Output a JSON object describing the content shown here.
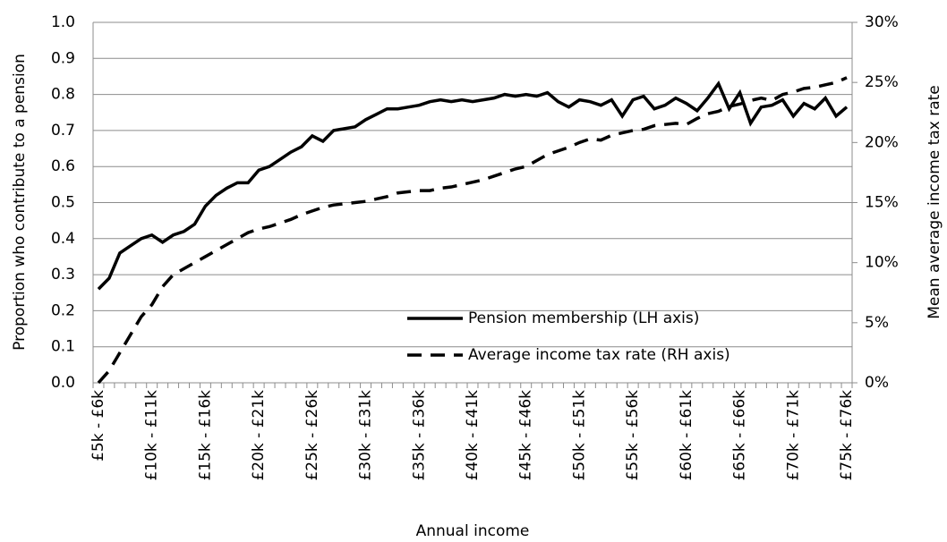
{
  "chart_data": {
    "type": "line",
    "x_label": "Annual income",
    "y_label": "Proportion who contribute to a pension",
    "y2_label": "Mean average income tax rate",
    "categories": [
      "£5k - £6k",
      null,
      null,
      null,
      null,
      "£10k - £11k",
      null,
      null,
      null,
      null,
      "£15k - £16k",
      null,
      null,
      null,
      null,
      "£20k - £21k",
      null,
      null,
      null,
      null,
      "£25k - £26k",
      null,
      null,
      null,
      null,
      "£30k - £31k",
      null,
      null,
      null,
      null,
      "£35k - £36k",
      null,
      null,
      null,
      null,
      "£40k - £41k",
      null,
      null,
      null,
      null,
      "£45k - £46k",
      null,
      null,
      null,
      null,
      "£50k - £51k",
      null,
      null,
      null,
      null,
      "£55k - £56k",
      null,
      null,
      null,
      null,
      "£60k - £61k",
      null,
      null,
      null,
      null,
      "£65k - £66k",
      null,
      null,
      null,
      null,
      "£70k - £71k",
      null,
      null,
      null,
      null,
      "£75k - £76k"
    ],
    "series": [
      {
        "name": "Pension membership (LH axis)",
        "color": "#000000",
        "dash": "solid",
        "axis": "y",
        "values": [
          0.26,
          0.29,
          0.36,
          0.38,
          0.4,
          0.41,
          0.39,
          0.41,
          0.42,
          0.44,
          0.49,
          0.52,
          0.54,
          0.555,
          0.555,
          0.59,
          0.6,
          0.62,
          0.64,
          0.655,
          0.685,
          0.67,
          0.7,
          0.705,
          0.71,
          0.73,
          0.745,
          0.76,
          0.76,
          0.765,
          0.77,
          0.78,
          0.785,
          0.78,
          0.785,
          0.78,
          0.785,
          0.79,
          0.8,
          0.795,
          0.8,
          0.795,
          0.805,
          0.78,
          0.765,
          0.785,
          0.78,
          0.77,
          0.785,
          0.74,
          0.785,
          0.795,
          0.76,
          0.77,
          0.79,
          0.775,
          0.755,
          0.79,
          0.83,
          0.76,
          0.805,
          0.72,
          0.765,
          0.77,
          0.785,
          0.74,
          0.775,
          0.76,
          0.79,
          0.74,
          0.765
        ]
      },
      {
        "name": "Average income tax rate (RH axis)",
        "color": "#000000",
        "dash": "dashed",
        "axis": "y2",
        "values": [
          0,
          1,
          2.5,
          4,
          5.5,
          6.5,
          8,
          9,
          9.5,
          10,
          10.5,
          11,
          11.5,
          12,
          12.5,
          12.8,
          13,
          13.3,
          13.6,
          14,
          14.3,
          14.6,
          14.8,
          14.9,
          15,
          15.1,
          15.3,
          15.5,
          15.8,
          15.9,
          16,
          16,
          16.2,
          16.3,
          16.5,
          16.7,
          16.9,
          17.2,
          17.5,
          17.8,
          18,
          18.5,
          19,
          19.3,
          19.6,
          20,
          20.3,
          20.2,
          20.6,
          20.8,
          21,
          21.1,
          21.4,
          21.5,
          21.6,
          21.5,
          22,
          22.4,
          22.6,
          23,
          23.2,
          23.5,
          23.7,
          23.5,
          24,
          24.2,
          24.5,
          24.6,
          24.8,
          25,
          25.4
        ]
      }
    ],
    "ylim": [
      0,
      1
    ],
    "yticks": [
      {
        "value": 0,
        "label": "0.0"
      },
      0.1,
      0.2,
      0.3,
      0.4,
      0.5,
      0.6,
      0.7,
      0.8,
      0.9,
      {
        "value": 1,
        "label": "1.0"
      }
    ],
    "y2lim": [
      0,
      30
    ],
    "y2ticks": [
      {
        "value": 0,
        "label": "0%"
      },
      {
        "value": 5,
        "label": "5%"
      },
      {
        "value": 10,
        "label": "10%"
      },
      {
        "value": 15,
        "label": "15%"
      },
      {
        "value": 20,
        "label": "20%"
      },
      {
        "value": 25,
        "label": "25%"
      },
      {
        "value": 30,
        "label": "30%"
      }
    ],
    "grid": true,
    "legend": "lower right"
  }
}
